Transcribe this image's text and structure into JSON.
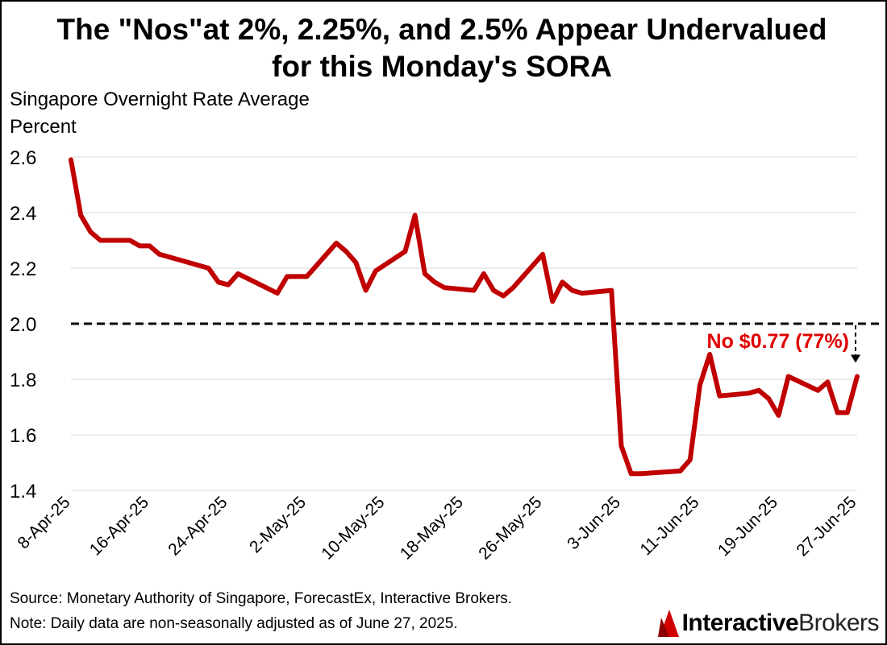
{
  "title_line1": "The \"Nos\"at 2%, 2.25%, and 2.5% Appear Undervalued",
  "title_line2": "for this Monday's SORA",
  "ylabel_line1": "Singapore Overnight Rate Average",
  "ylabel_line2": "Percent",
  "source": "Source: Monetary Authority of Singapore, ForecastEx, Interactive Brokers.",
  "note": "Note: Daily data are non-seasonally adjusted as of June 27, 2025.",
  "logo": {
    "part1": "Interactive",
    "part2": "Brokers",
    "mark_icon": "ib-logo-icon"
  },
  "colors": {
    "line": "#c00000",
    "annotation": "#e00000",
    "grid": "#d9d9d9",
    "reference": "#000000"
  },
  "chart_data": {
    "type": "line",
    "ylim": [
      1.4,
      2.6
    ],
    "yticks": [
      "1.4",
      "1.6",
      "1.8",
      "2.0",
      "2.2",
      "2.4",
      "2.6"
    ],
    "xlim": [
      "2025-04-08",
      "2025-06-27"
    ],
    "xtick_labels": [
      "8-Apr-25",
      "16-Apr-25",
      "24-Apr-25",
      "2-May-25",
      "10-May-25",
      "18-May-25",
      "26-May-25",
      "3-Jun-25",
      "11-Jun-25",
      "19-Jun-25",
      "27-Jun-25"
    ],
    "grid": true,
    "reference_line": {
      "y": 2.0,
      "style": "dashed"
    },
    "annotation": {
      "text": "No $0.77 (77%)",
      "x": "2025-06-27",
      "from_y": 2.0,
      "to_y": 1.81
    },
    "series": [
      {
        "x": [
          "2025-04-08",
          "2025-04-09",
          "2025-04-10",
          "2025-04-11",
          "2025-04-14",
          "2025-04-15",
          "2025-04-16",
          "2025-04-17",
          "2025-04-22",
          "2025-04-23",
          "2025-04-24",
          "2025-04-25",
          "2025-04-29",
          "2025-04-30",
          "2025-05-02",
          "2025-05-05",
          "2025-05-06",
          "2025-05-07",
          "2025-05-08",
          "2025-05-09",
          "2025-05-12",
          "2025-05-13",
          "2025-05-14",
          "2025-05-15",
          "2025-05-16",
          "2025-05-19",
          "2025-05-20",
          "2025-05-21",
          "2025-05-22",
          "2025-05-23",
          "2025-05-26",
          "2025-05-27",
          "2025-05-28",
          "2025-05-29",
          "2025-05-30",
          "2025-06-02",
          "2025-06-03",
          "2025-06-04",
          "2025-06-05",
          "2025-06-09",
          "2025-06-10",
          "2025-06-11",
          "2025-06-12",
          "2025-06-13",
          "2025-06-16",
          "2025-06-17",
          "2025-06-18",
          "2025-06-19",
          "2025-06-20",
          "2025-06-23",
          "2025-06-24",
          "2025-06-25",
          "2025-06-26",
          "2025-06-27"
        ],
        "values": [
          2.59,
          2.39,
          2.33,
          2.3,
          2.3,
          2.28,
          2.28,
          2.25,
          2.2,
          2.15,
          2.14,
          2.18,
          2.11,
          2.17,
          2.17,
          2.29,
          2.26,
          2.22,
          2.12,
          2.19,
          2.26,
          2.39,
          2.18,
          2.15,
          2.13,
          2.12,
          2.18,
          2.12,
          2.1,
          2.13,
          2.25,
          2.08,
          2.15,
          2.12,
          2.11,
          2.12,
          1.56,
          1.46,
          1.46,
          1.47,
          1.51,
          1.78,
          1.89,
          1.74,
          1.75,
          1.76,
          1.73,
          1.67,
          1.81,
          1.76,
          1.79,
          1.68,
          1.68,
          1.81
        ]
      }
    ]
  }
}
